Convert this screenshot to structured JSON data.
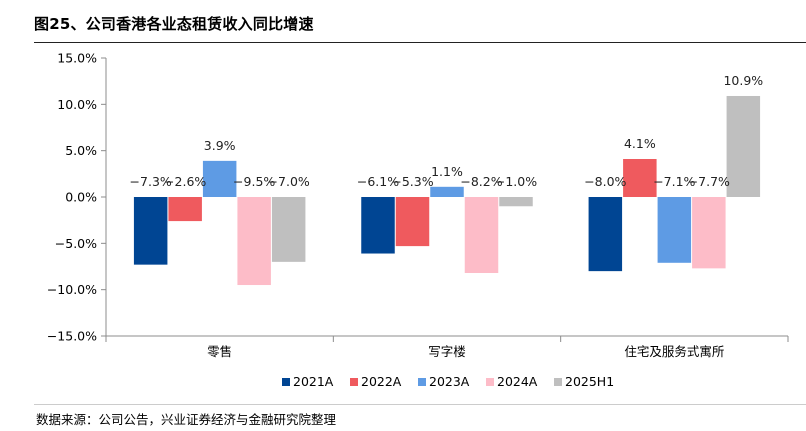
{
  "figure": {
    "title": "图25、公司香港各业态租赁收入同比增速",
    "source": "数据来源：公司公告，兴业证券经济与金融研究院整理"
  },
  "chart_data": {
    "type": "bar",
    "title": "图25、公司香港各业态租赁收入同比增速",
    "xlabel": "",
    "ylabel": "",
    "categories": [
      "零售",
      "写字楼",
      "住宅及服务式寓所"
    ],
    "series": [
      {
        "name": "2021A",
        "color": "#004593",
        "values": [
          -7.3,
          -6.1,
          -8.0
        ],
        "labels": [
          "−7.3%",
          "−6.1%",
          "−8.0%"
        ]
      },
      {
        "name": "2022A",
        "color": "#EF5A5E",
        "values": [
          -2.6,
          -5.3,
          4.1
        ],
        "labels": [
          "−2.6%",
          "−5.3%",
          "4.1%"
        ]
      },
      {
        "name": "2023A",
        "color": "#5E9BE4",
        "values": [
          3.9,
          1.1,
          -7.1
        ],
        "labels": [
          "3.9%",
          "1.1%",
          "−7.1%"
        ]
      },
      {
        "name": "2024A",
        "color": "#FDBCC8",
        "values": [
          -9.5,
          -8.2,
          -7.7
        ],
        "labels": [
          "−9.5%",
          "−8.2%",
          "−7.7%"
        ]
      },
      {
        "name": "2025H1",
        "color": "#BFBFBF",
        "values": [
          -7.0,
          -1.0,
          10.9
        ],
        "labels": [
          "−7.0%",
          "−1.0%",
          "10.9%"
        ]
      }
    ],
    "ylim": [
      -15,
      15
    ],
    "yticks": [
      15,
      10,
      5,
      0,
      -5,
      -10,
      -15
    ],
    "ytick_labels": [
      "15.0%",
      "10.0%",
      "5.0%",
      "0.0%",
      "−5.0%",
      "−10.0%",
      "−15.0%"
    ],
    "grid": false,
    "legend_position": "bottom"
  }
}
